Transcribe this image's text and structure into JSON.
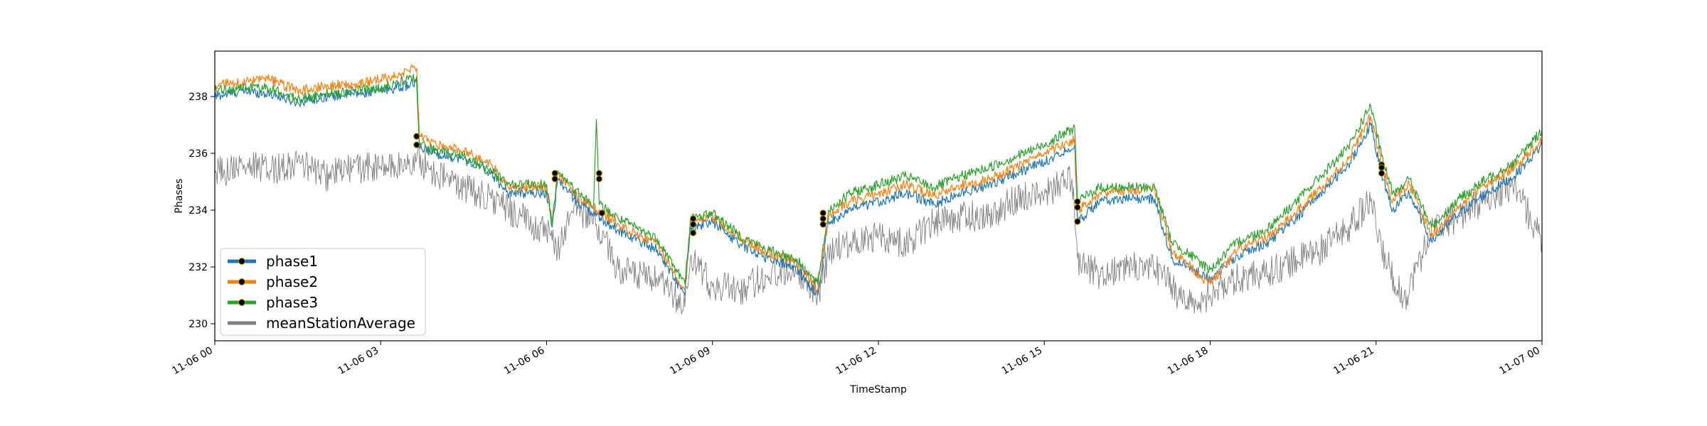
{
  "chart_data": {
    "type": "line",
    "xlabel": "TimeStamp",
    "ylabel": "Phases",
    "x_range": [
      0,
      24
    ],
    "ylim": [
      229.4,
      239.6
    ],
    "x_ticks": [
      0,
      3,
      6,
      9,
      12,
      15,
      18,
      21,
      24
    ],
    "x_tick_labels": [
      "11-06 00",
      "11-06 03",
      "11-06 06",
      "11-06 09",
      "11-06 12",
      "11-06 15",
      "11-06 18",
      "11-06 21",
      "11-07 00"
    ],
    "y_ticks": [
      230,
      232,
      234,
      236,
      238
    ],
    "y_tick_labels": [
      "230",
      "232",
      "234",
      "236",
      "238"
    ],
    "grid": false,
    "legend_position": "lower-left",
    "series": [
      {
        "name": "phase1",
        "color": "#1f77b4",
        "points": [
          [
            0,
            238.0
          ],
          [
            0.5,
            238.2
          ],
          [
            1,
            238.1
          ],
          [
            1.5,
            237.8
          ],
          [
            2,
            238.0
          ],
          [
            2.5,
            238.1
          ],
          [
            3,
            238.2
          ],
          [
            3.5,
            238.4
          ],
          [
            3.65,
            238.5
          ],
          [
            3.7,
            236.2
          ],
          [
            4,
            236.0
          ],
          [
            4.5,
            235.8
          ],
          [
            5,
            235.3
          ],
          [
            5.3,
            234.6
          ],
          [
            6,
            234.6
          ],
          [
            6.1,
            233.4
          ],
          [
            6.2,
            235.1
          ],
          [
            6.5,
            234.4
          ],
          [
            6.9,
            233.8
          ],
          [
            7.3,
            233.3
          ],
          [
            8,
            232.6
          ],
          [
            8.5,
            231.0
          ],
          [
            8.6,
            233.3
          ],
          [
            9,
            233.6
          ],
          [
            9.5,
            232.8
          ],
          [
            10,
            232.3
          ],
          [
            10.5,
            232.0
          ],
          [
            10.9,
            231.0
          ],
          [
            11.1,
            233.6
          ],
          [
            11.5,
            234.0
          ],
          [
            12,
            234.3
          ],
          [
            12.5,
            234.6
          ],
          [
            13,
            234.2
          ],
          [
            13.5,
            234.6
          ],
          [
            14,
            234.9
          ],
          [
            14.5,
            235.3
          ],
          [
            15,
            235.7
          ],
          [
            15.55,
            236.3
          ],
          [
            15.6,
            233.6
          ],
          [
            16,
            234.3
          ],
          [
            16.5,
            234.4
          ],
          [
            17,
            234.4
          ],
          [
            17.3,
            232.3
          ],
          [
            18,
            231.6
          ],
          [
            18.5,
            232.4
          ],
          [
            19,
            232.8
          ],
          [
            19.5,
            233.6
          ],
          [
            20,
            234.6
          ],
          [
            20.5,
            235.6
          ],
          [
            20.9,
            237.0
          ],
          [
            21.1,
            235.3
          ],
          [
            21.3,
            234.0
          ],
          [
            21.6,
            234.6
          ],
          [
            22,
            232.9
          ],
          [
            22.5,
            233.9
          ],
          [
            23,
            234.6
          ],
          [
            23.5,
            235.2
          ],
          [
            24,
            236.3
          ]
        ]
      },
      {
        "name": "phase2",
        "color": "#ff7f0e",
        "points": [
          [
            0,
            238.4
          ],
          [
            0.5,
            238.5
          ],
          [
            1,
            238.6
          ],
          [
            1.5,
            238.2
          ],
          [
            2,
            238.4
          ],
          [
            2.5,
            238.4
          ],
          [
            3,
            238.6
          ],
          [
            3.5,
            238.9
          ],
          [
            3.65,
            239.0
          ],
          [
            3.7,
            236.6
          ],
          [
            4,
            236.3
          ],
          [
            4.5,
            236.1
          ],
          [
            5,
            235.6
          ],
          [
            5.3,
            234.8
          ],
          [
            6,
            234.8
          ],
          [
            6.1,
            233.6
          ],
          [
            6.2,
            235.3
          ],
          [
            6.5,
            234.6
          ],
          [
            6.9,
            234.0
          ],
          [
            7.3,
            233.5
          ],
          [
            8,
            232.8
          ],
          [
            8.5,
            231.2
          ],
          [
            8.6,
            233.6
          ],
          [
            9,
            233.8
          ],
          [
            9.5,
            233.0
          ],
          [
            10,
            232.5
          ],
          [
            10.5,
            232.2
          ],
          [
            10.9,
            231.2
          ],
          [
            11.1,
            233.8
          ],
          [
            11.5,
            234.3
          ],
          [
            12,
            234.6
          ],
          [
            12.5,
            234.9
          ],
          [
            13,
            234.5
          ],
          [
            13.5,
            234.9
          ],
          [
            14,
            235.1
          ],
          [
            14.5,
            235.5
          ],
          [
            15,
            236.0
          ],
          [
            15.55,
            236.5
          ],
          [
            15.6,
            234.0
          ],
          [
            16,
            234.6
          ],
          [
            16.5,
            234.7
          ],
          [
            17,
            234.7
          ],
          [
            17.3,
            232.6
          ],
          [
            18,
            231.4
          ],
          [
            18.5,
            232.6
          ],
          [
            19,
            233.0
          ],
          [
            19.5,
            233.8
          ],
          [
            20,
            234.8
          ],
          [
            20.5,
            235.8
          ],
          [
            20.9,
            237.3
          ],
          [
            21.1,
            235.6
          ],
          [
            21.3,
            234.3
          ],
          [
            21.6,
            234.9
          ],
          [
            22,
            233.1
          ],
          [
            22.5,
            234.1
          ],
          [
            23,
            234.9
          ],
          [
            23.5,
            235.5
          ],
          [
            24,
            236.5
          ]
        ]
      },
      {
        "name": "phase3",
        "color": "#2ca02c",
        "points": [
          [
            0,
            238.2
          ],
          [
            0.5,
            238.3
          ],
          [
            1,
            238.3
          ],
          [
            1.5,
            237.9
          ],
          [
            2,
            238.1
          ],
          [
            2.5,
            238.2
          ],
          [
            3,
            238.3
          ],
          [
            3.5,
            238.6
          ],
          [
            3.65,
            238.7
          ],
          [
            3.7,
            236.3
          ],
          [
            4,
            236.1
          ],
          [
            4.5,
            235.9
          ],
          [
            5,
            235.4
          ],
          [
            5.3,
            234.9
          ],
          [
            6,
            234.9
          ],
          [
            6.1,
            233.5
          ],
          [
            6.2,
            235.4
          ],
          [
            6.5,
            234.7
          ],
          [
            6.85,
            234.2
          ],
          [
            6.9,
            237.2
          ],
          [
            6.95,
            234.2
          ],
          [
            7.3,
            233.7
          ],
          [
            8,
            233.0
          ],
          [
            8.5,
            231.4
          ],
          [
            8.6,
            233.7
          ],
          [
            9,
            233.9
          ],
          [
            9.5,
            233.1
          ],
          [
            10,
            232.6
          ],
          [
            10.5,
            232.3
          ],
          [
            10.9,
            231.4
          ],
          [
            11.1,
            234.0
          ],
          [
            11.5,
            234.6
          ],
          [
            12,
            234.9
          ],
          [
            12.5,
            235.2
          ],
          [
            13,
            234.8
          ],
          [
            13.5,
            235.2
          ],
          [
            14,
            235.5
          ],
          [
            14.5,
            235.9
          ],
          [
            15,
            236.3
          ],
          [
            15.55,
            236.9
          ],
          [
            15.6,
            234.3
          ],
          [
            16,
            234.8
          ],
          [
            16.5,
            234.8
          ],
          [
            17,
            234.8
          ],
          [
            17.3,
            232.9
          ],
          [
            18,
            231.9
          ],
          [
            18.5,
            232.9
          ],
          [
            19,
            233.3
          ],
          [
            19.5,
            234.2
          ],
          [
            20,
            235.2
          ],
          [
            20.5,
            236.2
          ],
          [
            20.9,
            237.7
          ],
          [
            21.1,
            235.9
          ],
          [
            21.3,
            234.6
          ],
          [
            21.6,
            235.1
          ],
          [
            22,
            233.4
          ],
          [
            22.5,
            234.4
          ],
          [
            23,
            235.1
          ],
          [
            23.5,
            235.7
          ],
          [
            24,
            236.8
          ]
        ]
      },
      {
        "name": "meanStationAverage",
        "color": "#808080",
        "points": [
          [
            0,
            235.3
          ],
          [
            0.5,
            235.6
          ],
          [
            1,
            235.4
          ],
          [
            1.5,
            235.7
          ],
          [
            2,
            235.2
          ],
          [
            2.5,
            235.5
          ],
          [
            3,
            235.5
          ],
          [
            3.5,
            235.6
          ],
          [
            3.65,
            235.8
          ],
          [
            4,
            235.3
          ],
          [
            4.5,
            234.8
          ],
          [
            5,
            234.4
          ],
          [
            5.5,
            233.8
          ],
          [
            6,
            233.2
          ],
          [
            6.2,
            232.6
          ],
          [
            6.5,
            234.2
          ],
          [
            6.9,
            233.5
          ],
          [
            7.3,
            231.9
          ],
          [
            8,
            231.5
          ],
          [
            8.5,
            230.6
          ],
          [
            8.6,
            232.3
          ],
          [
            9,
            231.3
          ],
          [
            9.5,
            231.2
          ],
          [
            10,
            231.7
          ],
          [
            10.5,
            232.0
          ],
          [
            10.9,
            231.0
          ],
          [
            11.1,
            232.5
          ],
          [
            11.5,
            232.9
          ],
          [
            12,
            233.1
          ],
          [
            12.5,
            232.8
          ],
          [
            13,
            233.6
          ],
          [
            13.5,
            233.8
          ],
          [
            14,
            233.8
          ],
          [
            14.5,
            234.4
          ],
          [
            15,
            234.6
          ],
          [
            15.5,
            235.1
          ],
          [
            15.6,
            232.3
          ],
          [
            16,
            231.7
          ],
          [
            16.5,
            232.0
          ],
          [
            17,
            231.9
          ],
          [
            17.3,
            231.4
          ],
          [
            17.5,
            230.7
          ],
          [
            18,
            231.0
          ],
          [
            18.5,
            231.6
          ],
          [
            19,
            231.8
          ],
          [
            19.5,
            232.2
          ],
          [
            20,
            232.6
          ],
          [
            20.5,
            233.4
          ],
          [
            20.9,
            234.3
          ],
          [
            21.1,
            232.6
          ],
          [
            21.5,
            230.8
          ],
          [
            22,
            233.3
          ],
          [
            22.5,
            233.8
          ],
          [
            23,
            234.4
          ],
          [
            23.5,
            234.9
          ],
          [
            24,
            232.9
          ]
        ]
      }
    ],
    "markers": [
      {
        "x": 3.65,
        "y": 236.3
      },
      {
        "x": 3.65,
        "y": 236.6
      },
      {
        "x": 6.15,
        "y": 235.3
      },
      {
        "x": 6.15,
        "y": 235.1
      },
      {
        "x": 6.95,
        "y": 235.3
      },
      {
        "x": 6.95,
        "y": 235.1
      },
      {
        "x": 7.0,
        "y": 233.9
      },
      {
        "x": 8.65,
        "y": 233.7
      },
      {
        "x": 8.65,
        "y": 233.5
      },
      {
        "x": 8.65,
        "y": 233.2
      },
      {
        "x": 11.0,
        "y": 233.9
      },
      {
        "x": 11.0,
        "y": 233.7
      },
      {
        "x": 11.0,
        "y": 233.5
      },
      {
        "x": 15.6,
        "y": 234.3
      },
      {
        "x": 15.6,
        "y": 234.1
      },
      {
        "x": 15.6,
        "y": 233.6
      },
      {
        "x": 21.1,
        "y": 235.6
      },
      {
        "x": 21.1,
        "y": 235.5
      },
      {
        "x": 21.1,
        "y": 235.3
      }
    ]
  }
}
